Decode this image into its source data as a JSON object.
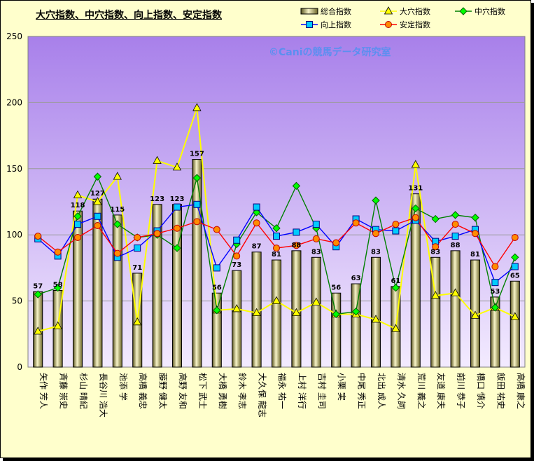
{
  "chart_data": {
    "type": "bar",
    "title": "大穴指数、中穴指数、向上指数、安定指数",
    "watermark": "©Caniの競馬データ研究室",
    "ylim": [
      0,
      250
    ],
    "yticks": [
      0,
      50,
      100,
      150,
      200,
      250
    ],
    "grid": true,
    "legend_position": "top-right",
    "categories": [
      "矢作 芳人",
      "斉藤 崇史",
      "杉山 晴紀",
      "長谷川 浩大",
      "池添 学",
      "高橋 義忠",
      "藤野 健太",
      "高野 友和",
      "松下 武士",
      "大橋 勇樹",
      "鈴木 孝志",
      "大久保 龍志",
      "福永 祐一",
      "上村 洋行",
      "吉村 圭司",
      "小栗 実",
      "中尾 秀正",
      "北出 成人",
      "清水 久詞",
      "荒川 義之",
      "友道 康夫",
      "前川 恭子",
      "橋口 慎介",
      "飯田 祐史",
      "高橋 康之"
    ],
    "series": [
      {
        "name": "総合指数",
        "kind": "bar",
        "color": "#f5f0b0",
        "values": [
          57,
          58,
          118,
          127,
          115,
          71,
          123,
          123,
          157,
          56,
          73,
          87,
          81,
          88,
          83,
          56,
          63,
          83,
          61,
          131,
          83,
          88,
          81,
          53,
          65
        ]
      },
      {
        "name": "大穴指数",
        "kind": "line",
        "color": "#ffff00",
        "marker": "triangle",
        "values": [
          27,
          31,
          130,
          125,
          144,
          34,
          156,
          151,
          196,
          43,
          44,
          41,
          50,
          41,
          49,
          40,
          40,
          36,
          29,
          153,
          54,
          56,
          39,
          45,
          38
        ]
      },
      {
        "name": "中穴指数",
        "kind": "line",
        "color": "#008000",
        "marker": "diamond",
        "values": [
          55,
          60,
          114,
          144,
          108,
          98,
          100,
          90,
          143,
          43,
          93,
          117,
          105,
          137,
          105,
          40,
          42,
          126,
          60,
          120,
          112,
          115,
          113,
          45,
          83
        ]
      },
      {
        "name": "向上指数",
        "kind": "line",
        "color": "#0000ff",
        "marker": "square",
        "values": [
          97,
          84,
          108,
          114,
          83,
          90,
          103,
          121,
          123,
          75,
          96,
          121,
          99,
          102,
          108,
          91,
          112,
          104,
          103,
          111,
          95,
          99,
          104,
          64,
          76
        ]
      },
      {
        "name": "安定指数",
        "kind": "line",
        "color": "#ff0000",
        "marker": "circle",
        "values": [
          99,
          87,
          98,
          107,
          86,
          98,
          101,
          105,
          110,
          104,
          84,
          109,
          90,
          92,
          97,
          94,
          109,
          101,
          108,
          113,
          91,
          108,
          101,
          76,
          98
        ]
      }
    ]
  }
}
